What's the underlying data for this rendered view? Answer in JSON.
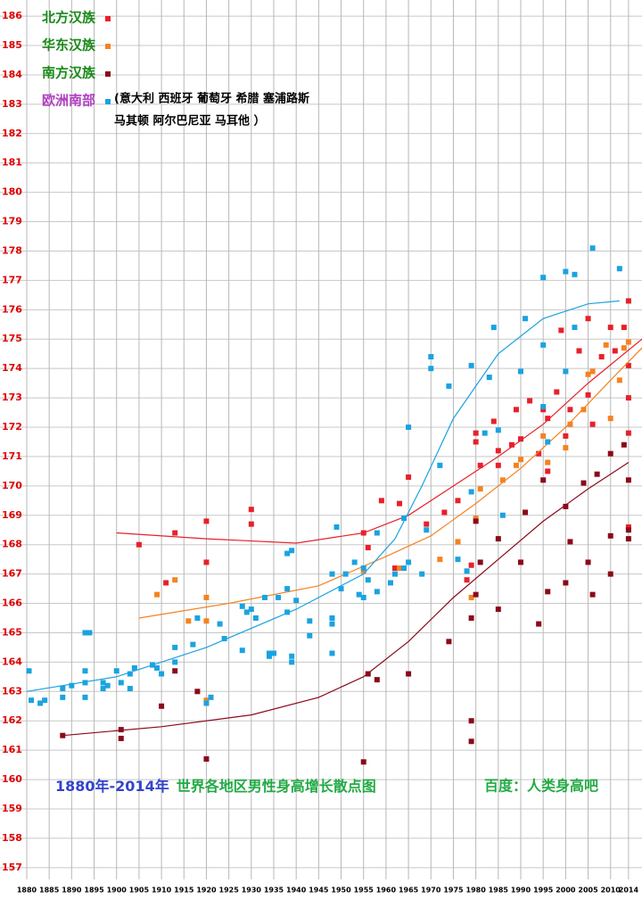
{
  "chart_data": {
    "type": "scatter",
    "title": [
      "1880年-2014年",
      "世界各地区男性身高增长散点图"
    ],
    "title_colors": [
      "#3344cc",
      "#22aa44"
    ],
    "source": "百度：人类身高吧",
    "source_color": "#22aa44",
    "xlim": [
      1880,
      2017
    ],
    "ylim": [
      156.6,
      186.55
    ],
    "xticks": [
      1880,
      1885,
      1890,
      1895,
      1900,
      1905,
      1910,
      1915,
      1920,
      1925,
      1930,
      1935,
      1940,
      1945,
      1950,
      1955,
      1960,
      1965,
      1970,
      1975,
      1980,
      1985,
      1990,
      1995,
      2000,
      2005,
      2010,
      2014
    ],
    "yticks": [
      157,
      158,
      159,
      160,
      161,
      162,
      163,
      164,
      165,
      166,
      167,
      168,
      169,
      170,
      171,
      172,
      173,
      174,
      175,
      176,
      177,
      178,
      179,
      180,
      181,
      182,
      183,
      184,
      185,
      186
    ],
    "grid": true,
    "legend": "upper left",
    "legend_note": [
      "(意大利 西班牙 葡萄牙 希腊 塞浦路斯",
      "马其顿 阿尔巴尼亚 马耳他 ）"
    ],
    "series": [
      {
        "name": "北方汉族",
        "label_color": "#1a8a1a",
        "color": "#e8202a",
        "x": [
          1905,
          1911,
          1913,
          1920,
          1920,
          1930,
          1930,
          1955,
          1956,
          1959,
          1962,
          1963,
          1965,
          1969,
          1973,
          1976,
          1978,
          1979,
          1980,
          1980,
          1981,
          1984,
          1985,
          1985,
          1988,
          1989,
          1990,
          1992,
          1994,
          1995,
          1996,
          1996,
          1998,
          1999,
          2000,
          2001,
          2003,
          2005,
          2005,
          2006,
          2008,
          2010,
          2011,
          2013,
          2014,
          2014,
          2014,
          2014,
          2014
        ],
        "values": [
          168,
          166.7,
          168.4,
          168.8,
          167.4,
          169.2,
          168.7,
          168.4,
          167.9,
          169.5,
          167.2,
          169.4,
          170.3,
          168.7,
          169.1,
          169.5,
          166.8,
          167.3,
          171.8,
          171.5,
          170.7,
          172.2,
          171.2,
          170.7,
          171.4,
          172.6,
          171.6,
          172.9,
          171.1,
          172.6,
          170.5,
          172.3,
          173.2,
          175.3,
          171.7,
          172.6,
          174.6,
          175.7,
          173.1,
          172.1,
          174.4,
          175.4,
          174.6,
          175.4,
          176.3,
          174.1,
          173,
          168.6,
          171.8
        ],
        "trend": {
          "x": [
            1900,
            1920,
            1940,
            1955,
            1965,
            1975,
            1985,
            1995,
            2005,
            2017
          ],
          "values": [
            168.4,
            168.2,
            168.05,
            168.4,
            169,
            170,
            171,
            172.1,
            173.5,
            175
          ]
        }
      },
      {
        "name": "华东汉族",
        "label_color": "#1a8a1a",
        "color": "#f58220",
        "x": [
          1909,
          1913,
          1916,
          1920,
          1920,
          1920,
          1955,
          1963,
          1972,
          1976,
          1979,
          1980,
          1981,
          1986,
          1989,
          1990,
          1995,
          1996,
          2000,
          2001,
          2004,
          2005,
          2006,
          2009,
          2010,
          2012,
          2013,
          2014
        ],
        "values": [
          166.3,
          166.8,
          165.4,
          166.2,
          165.4,
          162.7,
          167.1,
          167.2,
          167.5,
          168.1,
          166.2,
          168.9,
          169.9,
          170.2,
          170.7,
          170.9,
          171.7,
          170.8,
          171.3,
          172.1,
          172.6,
          173.8,
          173.9,
          174.8,
          172.3,
          173.6,
          174.7,
          174.9
        ],
        "trend": {
          "x": [
            1905,
            1925,
            1945,
            1960,
            1970,
            1980,
            1990,
            2000,
            2010,
            2017
          ],
          "values": [
            165.5,
            166,
            166.6,
            167.6,
            168.3,
            169.4,
            170.6,
            172,
            173.6,
            174.7
          ]
        }
      },
      {
        "name": "南方汉族",
        "label_color": "#1a8a1a",
        "color": "#8b0a1a",
        "x": [
          1888,
          1901,
          1901,
          1910,
          1913,
          1918,
          1920,
          1955,
          1956,
          1958,
          1965,
          1974,
          1979,
          1979,
          1979,
          1980,
          1980,
          1981,
          1985,
          1985,
          1990,
          1991,
          1994,
          1995,
          1996,
          2000,
          2000,
          2001,
          2004,
          2005,
          2006,
          2007,
          2010,
          2010,
          2010,
          2013,
          2014,
          2014,
          2014
        ],
        "values": [
          161.5,
          161.7,
          161.4,
          162.5,
          163.7,
          163,
          160.7,
          160.6,
          163.6,
          163.4,
          163.6,
          164.7,
          165.5,
          162,
          161.3,
          166.3,
          168.8,
          167.4,
          168.2,
          165.8,
          167.4,
          169.1,
          165.3,
          170.2,
          166.4,
          166.7,
          169.3,
          168.1,
          170.1,
          167.4,
          166.3,
          170.4,
          167,
          168.3,
          171.1,
          171.4,
          170.2,
          168.2,
          168.5
        ],
        "trend": {
          "x": [
            1888,
            1910,
            1930,
            1945,
            1955,
            1965,
            1975,
            1985,
            1995,
            2005,
            2014
          ],
          "values": [
            161.5,
            161.8,
            162.2,
            162.8,
            163.5,
            164.7,
            166.2,
            167.5,
            168.8,
            169.9,
            170.8
          ]
        }
      },
      {
        "name": "欧洲南部",
        "label_color": "#b040c0",
        "color": "#1aa3e0",
        "x": [
          1880.5,
          1881,
          1883,
          1884,
          1888,
          1888,
          1890,
          1893,
          1893,
          1893,
          1893,
          1894,
          1897,
          1897,
          1898,
          1900,
          1901,
          1903,
          1903,
          1904,
          1908,
          1909,
          1910,
          1913,
          1913,
          1917,
          1918,
          1920,
          1921,
          1923,
          1924,
          1928,
          1928,
          1929,
          1930,
          1931,
          1933,
          1934,
          1934,
          1935,
          1936,
          1938,
          1938,
          1938,
          1939,
          1939,
          1939,
          1940,
          1943,
          1943,
          1948,
          1948,
          1948,
          1948,
          1949,
          1950,
          1951,
          1953,
          1954,
          1955,
          1955,
          1956,
          1958,
          1958,
          1961,
          1962,
          1964,
          1964,
          1965,
          1965,
          1968,
          1969,
          1970,
          1970,
          1972,
          1974,
          1976,
          1978,
          1979,
          1979,
          1982,
          1983,
          1984,
          1985,
          1986,
          1990,
          1991,
          1995,
          1995,
          1995,
          1996,
          2000,
          2000,
          2002,
          2002,
          2006,
          2012
        ],
        "values": [
          163.7,
          162.7,
          162.6,
          162.7,
          163.1,
          162.8,
          163.2,
          163.3,
          162.8,
          163.7,
          165,
          165,
          163.3,
          163.1,
          163.2,
          163.7,
          163.3,
          163.6,
          163.1,
          163.8,
          163.9,
          163.8,
          163.6,
          164,
          164.5,
          164.6,
          165.5,
          162.6,
          162.8,
          165.3,
          164.8,
          165.9,
          164.4,
          165.7,
          165.8,
          165.5,
          166.2,
          164.3,
          164.2,
          164.3,
          166.2,
          165.7,
          166.5,
          167.7,
          164.2,
          164,
          167.8,
          166.1,
          165.4,
          164.9,
          167,
          164.3,
          165.3,
          165.5,
          168.6,
          166.5,
          167,
          167.4,
          166.3,
          166.2,
          167.2,
          166.8,
          166.4,
          168.4,
          166.7,
          167,
          167.2,
          168.9,
          167.4,
          172,
          167,
          168.5,
          174.4,
          174,
          170.7,
          173.4,
          167.5,
          167.1,
          174.1,
          169.8,
          171.8,
          173.7,
          175.4,
          171.9,
          169,
          173.9,
          175.7,
          177.1,
          174.8,
          172.7,
          171.5,
          177.3,
          173.9,
          175.4,
          177.2,
          178.1,
          177.4
        ],
        "trend": {
          "x": [
            1880,
            1900,
            1920,
            1940,
            1955,
            1962,
            1968,
            1975,
            1985,
            1995,
            2005,
            2012
          ],
          "values": [
            163,
            163.5,
            164.5,
            165.8,
            167,
            168.2,
            170,
            172.3,
            174.5,
            175.7,
            176.2,
            176.3
          ]
        }
      }
    ]
  }
}
